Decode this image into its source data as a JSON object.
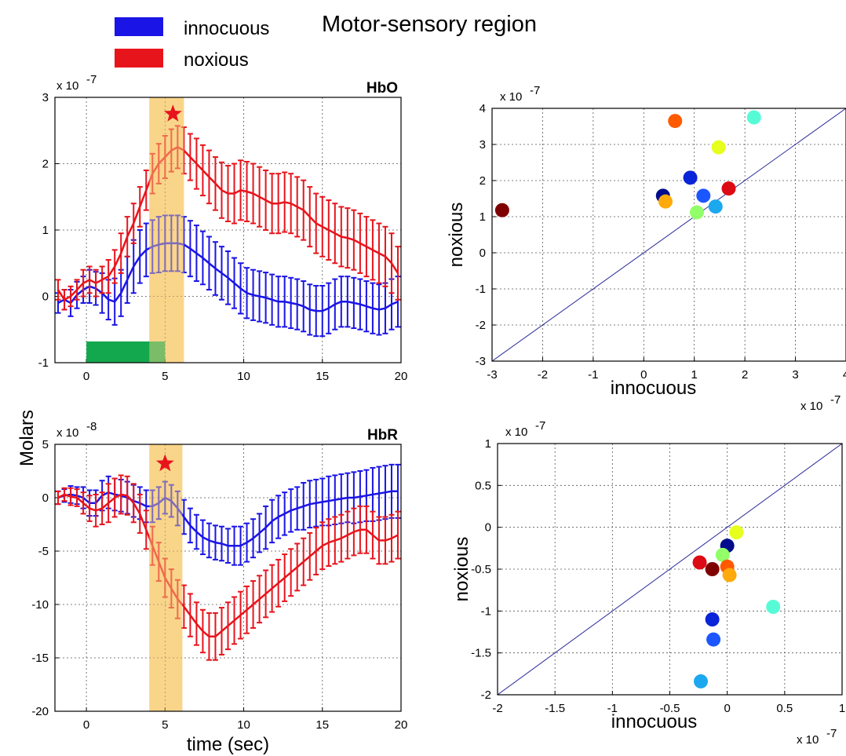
{
  "figure": {
    "title": "Motor-sensory region",
    "shared_ylabel": "Molars",
    "legend": [
      {
        "label": "innocuous",
        "color": "#1a14e6"
      },
      {
        "label": "noxious",
        "color": "#e8141c"
      }
    ],
    "colors": {
      "highlight": "#f9d58a",
      "stimulus_bar": "#14a84e",
      "star": "#e8141c",
      "identity_line": "#2a2a9a"
    }
  },
  "chart_data": [
    {
      "id": "hbo",
      "type": "line",
      "title": "HbO",
      "xlabel": "",
      "ylabel": "",
      "y_scale_label": "x 10",
      "y_scale_exp": "-7",
      "xlim": [
        -2,
        20
      ],
      "ylim": [
        -1,
        3
      ],
      "xticks": [
        "0",
        "5",
        "10",
        "15",
        "20"
      ],
      "yticks": [
        "-1",
        "0",
        "1",
        "2",
        "3"
      ],
      "highlight_window": [
        4,
        6.2
      ],
      "stimulus_bar": {
        "x": [
          0,
          5
        ],
        "y": [
          -1,
          -0.68
        ]
      },
      "significance_star": {
        "x": 5.5,
        "y": 2.75
      },
      "series": [
        {
          "name": "innocuous",
          "color": "#1a14e6",
          "x": [
            -1.8,
            -1.4,
            -1,
            -0.6,
            -0.2,
            0.2,
            0.6,
            1,
            1.4,
            1.8,
            2.2,
            2.6,
            3,
            3.4,
            3.8,
            4.2,
            4.6,
            5,
            5.4,
            5.8,
            6.2,
            6.6,
            7,
            7.4,
            7.8,
            8.2,
            8.6,
            9,
            9.4,
            9.8,
            10.2,
            10.6,
            11,
            11.4,
            11.8,
            12.2,
            12.6,
            13,
            13.4,
            13.8,
            14.2,
            14.6,
            15,
            15.4,
            15.8,
            16.2,
            16.6,
            17,
            17.4,
            17.8,
            18.2,
            18.6,
            19,
            19.4,
            19.8
          ],
          "y": [
            -0.1,
            -0.05,
            -0.1,
            0.02,
            0.1,
            0.15,
            0.12,
            0.05,
            -0.05,
            -0.08,
            0.05,
            0.25,
            0.45,
            0.6,
            0.7,
            0.75,
            0.78,
            0.8,
            0.8,
            0.8,
            0.78,
            0.72,
            0.65,
            0.58,
            0.5,
            0.42,
            0.35,
            0.28,
            0.2,
            0.12,
            0.05,
            0.02,
            0.0,
            -0.02,
            -0.05,
            -0.08,
            -0.08,
            -0.1,
            -0.12,
            -0.15,
            -0.2,
            -0.22,
            -0.22,
            -0.18,
            -0.12,
            -0.08,
            -0.08,
            -0.1,
            -0.12,
            -0.15,
            -0.18,
            -0.2,
            -0.18,
            -0.12,
            -0.08
          ],
          "err": [
            0.15,
            0.15,
            0.2,
            0.2,
            0.2,
            0.25,
            0.25,
            0.3,
            0.3,
            0.35,
            0.35,
            0.35,
            0.4,
            0.4,
            0.4,
            0.4,
            0.42,
            0.42,
            0.42,
            0.42,
            0.42,
            0.42,
            0.42,
            0.4,
            0.4,
            0.4,
            0.4,
            0.4,
            0.38,
            0.38,
            0.38,
            0.38,
            0.38,
            0.38,
            0.38,
            0.38,
            0.38,
            0.38,
            0.38,
            0.38,
            0.38,
            0.38,
            0.38,
            0.38,
            0.38,
            0.38,
            0.38,
            0.38,
            0.38,
            0.38,
            0.38,
            0.38,
            0.38,
            0.38,
            0.38
          ]
        },
        {
          "name": "noxious",
          "color": "#e8141c",
          "x": [
            -1.8,
            -1.4,
            -1,
            -0.6,
            -0.2,
            0.2,
            0.6,
            1,
            1.4,
            1.8,
            2.2,
            2.6,
            3,
            3.4,
            3.8,
            4.2,
            4.6,
            5,
            5.4,
            5.8,
            6.2,
            6.6,
            7,
            7.4,
            7.8,
            8.2,
            8.6,
            9,
            9.4,
            9.8,
            10.2,
            10.6,
            11,
            11.4,
            11.8,
            12.2,
            12.6,
            13,
            13.4,
            13.8,
            14.2,
            14.6,
            15,
            15.4,
            15.8,
            16.2,
            16.6,
            17,
            17.4,
            17.8,
            18.2,
            18.6,
            19,
            19.4,
            19.8
          ],
          "y": [
            0.1,
            -0.05,
            0.0,
            0.1,
            0.2,
            0.25,
            0.2,
            0.25,
            0.3,
            0.45,
            0.65,
            0.9,
            1.1,
            1.35,
            1.6,
            1.85,
            2.0,
            2.1,
            2.2,
            2.25,
            2.2,
            2.1,
            2.0,
            1.9,
            1.8,
            1.7,
            1.6,
            1.55,
            1.55,
            1.6,
            1.58,
            1.55,
            1.5,
            1.45,
            1.4,
            1.4,
            1.42,
            1.4,
            1.35,
            1.3,
            1.2,
            1.1,
            1.05,
            1.0,
            0.95,
            0.9,
            0.88,
            0.85,
            0.8,
            0.75,
            0.7,
            0.65,
            0.6,
            0.5,
            0.35
          ],
          "err": [
            0.15,
            0.15,
            0.15,
            0.15,
            0.2,
            0.2,
            0.2,
            0.2,
            0.25,
            0.25,
            0.3,
            0.3,
            0.3,
            0.3,
            0.3,
            0.3,
            0.3,
            0.32,
            0.32,
            0.32,
            0.35,
            0.35,
            0.38,
            0.38,
            0.4,
            0.4,
            0.42,
            0.42,
            0.45,
            0.45,
            0.45,
            0.45,
            0.45,
            0.45,
            0.45,
            0.45,
            0.45,
            0.45,
            0.45,
            0.45,
            0.45,
            0.45,
            0.45,
            0.45,
            0.45,
            0.45,
            0.45,
            0.45,
            0.45,
            0.45,
            0.45,
            0.45,
            0.45,
            0.45,
            0.4
          ]
        }
      ]
    },
    {
      "id": "hbr",
      "type": "line",
      "title": "HbR",
      "xlabel": "time (sec)",
      "ylabel": "",
      "y_scale_label": "x 10",
      "y_scale_exp": "-8",
      "xlim": [
        -2,
        20
      ],
      "ylim": [
        -20,
        5
      ],
      "xticks": [
        "0",
        "5",
        "10",
        "15",
        "20"
      ],
      "yticks": [
        "-20",
        "-15",
        "-10",
        "-5",
        "0",
        "5"
      ],
      "highlight_window": [
        4,
        6.1
      ],
      "significance_star": {
        "x": 5,
        "y": 3.2
      },
      "series": [
        {
          "name": "innocuous",
          "color": "#1a14e6",
          "x": [
            -1.8,
            -1.4,
            -1,
            -0.6,
            -0.2,
            0.2,
            0.6,
            1,
            1.4,
            1.8,
            2.2,
            2.6,
            3,
            3.4,
            3.8,
            4.2,
            4.6,
            5,
            5.4,
            5.8,
            6.2,
            6.6,
            7,
            7.4,
            7.8,
            8.2,
            8.6,
            9,
            9.4,
            9.8,
            10.2,
            10.6,
            11,
            11.4,
            11.8,
            12.2,
            12.6,
            13,
            13.4,
            13.8,
            14.2,
            14.6,
            15,
            15.4,
            15.8,
            16.2,
            16.6,
            17,
            17.4,
            17.8,
            18.2,
            18.6,
            19,
            19.4,
            19.8
          ],
          "y": [
            0,
            0.2,
            0.3,
            0.2,
            0,
            -0.5,
            -0.5,
            0.2,
            0.5,
            0.3,
            0.2,
            0.0,
            -0.3,
            -0.5,
            -0.8,
            -0.8,
            -0.5,
            0.0,
            -0.3,
            -1.0,
            -1.8,
            -2.6,
            -3.2,
            -3.7,
            -4.0,
            -4.2,
            -4.3,
            -4.5,
            -4.5,
            -4.5,
            -4.2,
            -3.8,
            -3.3,
            -2.8,
            -2.2,
            -1.8,
            -1.5,
            -1.2,
            -1.0,
            -0.8,
            -0.6,
            -0.5,
            -0.4,
            -0.3,
            -0.2,
            -0.1,
            0.0,
            0.0,
            0.1,
            0.2,
            0.3,
            0.4,
            0.5,
            0.6,
            0.6
          ],
          "err": [
            0.6,
            0.6,
            0.8,
            0.8,
            1.0,
            1.2,
            1.2,
            1.4,
            1.5,
            1.5,
            1.5,
            1.5,
            1.5,
            1.5,
            1.5,
            1.5,
            1.5,
            1.5,
            1.5,
            1.6,
            1.6,
            1.6,
            1.6,
            1.6,
            1.6,
            1.6,
            1.6,
            1.6,
            1.8,
            1.8,
            1.8,
            1.8,
            1.8,
            2.0,
            2.0,
            2.0,
            2.0,
            2.0,
            2.0,
            2.2,
            2.2,
            2.2,
            2.2,
            2.3,
            2.3,
            2.3,
            2.3,
            2.4,
            2.4,
            2.4,
            2.5,
            2.5,
            2.5,
            2.5,
            2.5
          ]
        },
        {
          "name": "noxious",
          "color": "#e8141c",
          "x": [
            -1.8,
            -1.4,
            -1,
            -0.6,
            -0.2,
            0.2,
            0.6,
            1,
            1.4,
            1.8,
            2.2,
            2.6,
            3,
            3.4,
            3.8,
            4.2,
            4.6,
            5,
            5.4,
            5.8,
            6.2,
            6.6,
            7,
            7.4,
            7.8,
            8.2,
            8.6,
            9,
            9.4,
            9.8,
            10.2,
            10.6,
            11,
            11.4,
            11.8,
            12.2,
            12.6,
            13,
            13.4,
            13.8,
            14.2,
            14.6,
            15,
            15.4,
            15.8,
            16.2,
            16.6,
            17,
            17.4,
            17.8,
            18.2,
            18.6,
            19,
            19.4,
            19.8
          ],
          "y": [
            0,
            0.3,
            0.1,
            0,
            -0.5,
            -1.0,
            -1.2,
            -1.0,
            -0.5,
            0,
            0.3,
            0.2,
            -0.5,
            -1.5,
            -3.0,
            -4.5,
            -6.0,
            -7.5,
            -8.5,
            -9.5,
            -10.2,
            -11.0,
            -11.8,
            -12.5,
            -13.0,
            -13.0,
            -12.5,
            -12.0,
            -11.5,
            -11.0,
            -10.5,
            -10.0,
            -9.5,
            -9.0,
            -8.5,
            -8.0,
            -7.5,
            -7.0,
            -6.5,
            -6.0,
            -5.5,
            -5.0,
            -4.5,
            -4.2,
            -4.0,
            -3.8,
            -3.5,
            -3.2,
            -3.0,
            -3.0,
            -3.5,
            -4.0,
            -4.0,
            -3.8,
            -3.5
          ],
          "err": [
            0.6,
            0.6,
            0.8,
            0.8,
            1.0,
            1.2,
            1.5,
            1.5,
            1.8,
            1.8,
            1.8,
            1.8,
            1.8,
            1.8,
            1.8,
            1.8,
            1.8,
            1.8,
            1.8,
            1.8,
            2.0,
            2.0,
            2.0,
            2.0,
            2.2,
            2.2,
            2.2,
            2.2,
            2.2,
            2.2,
            2.2,
            2.2,
            2.2,
            2.2,
            2.2,
            2.2,
            2.2,
            2.2,
            2.2,
            2.2,
            2.2,
            2.2,
            2.2,
            2.2,
            2.2,
            2.2,
            2.2,
            2.2,
            2.2,
            2.2,
            2.2,
            2.2,
            2.2,
            2.2,
            2.2
          ]
        }
      ]
    },
    {
      "id": "scatter_hbo",
      "type": "scatter",
      "title": "",
      "xlabel": "innocuous",
      "ylabel": "noxious",
      "x_scale_label": "x 10",
      "x_scale_exp": "-7",
      "y_scale_label": "x 10",
      "y_scale_exp": "-7",
      "xlim": [
        -3,
        4
      ],
      "ylim": [
        -3,
        4
      ],
      "xticks": [
        "-3",
        "-2",
        "-1",
        "0",
        "1",
        "2",
        "3",
        "4"
      ],
      "yticks": [
        "-3",
        "-2",
        "-1",
        "0",
        "1",
        "2",
        "3",
        "4"
      ],
      "identity_line": true,
      "points": [
        {
          "x": -2.8,
          "y": 1.18,
          "color": "#7f0000"
        },
        {
          "x": 0.62,
          "y": 3.65,
          "color": "#ff5a00"
        },
        {
          "x": 2.18,
          "y": 3.75,
          "color": "#56fbd6"
        },
        {
          "x": 1.48,
          "y": 2.92,
          "color": "#e6ff1c"
        },
        {
          "x": 0.92,
          "y": 2.08,
          "color": "#0a24d8"
        },
        {
          "x": 0.38,
          "y": 1.58,
          "color": "#000c8c"
        },
        {
          "x": 0.43,
          "y": 1.42,
          "color": "#ffaa0a"
        },
        {
          "x": 1.18,
          "y": 1.58,
          "color": "#1c56ff"
        },
        {
          "x": 1.68,
          "y": 1.78,
          "color": "#dc0a14"
        },
        {
          "x": 1.42,
          "y": 1.28,
          "color": "#1ca8ee"
        },
        {
          "x": 1.05,
          "y": 1.12,
          "color": "#92ff6a"
        }
      ]
    },
    {
      "id": "scatter_hbr",
      "type": "scatter",
      "title": "",
      "xlabel": "innocuous",
      "ylabel": "noxious",
      "x_scale_label": "x 10",
      "x_scale_exp": "-7",
      "y_scale_label": "x 10",
      "y_scale_exp": "-7",
      "xlim": [
        -2,
        1
      ],
      "ylim": [
        -2,
        1
      ],
      "xticks": [
        "-2",
        "-1.5",
        "-1",
        "-0.5",
        "0",
        "0.5",
        "1"
      ],
      "yticks": [
        "-2",
        "-1.5",
        "-1",
        "-0.5",
        "0",
        "0.5",
        "1"
      ],
      "identity_line": true,
      "points": [
        {
          "x": 0.08,
          "y": -0.06,
          "color": "#e6ff1c"
        },
        {
          "x": -0.0,
          "y": -0.22,
          "color": "#000c8c"
        },
        {
          "x": -0.04,
          "y": -0.33,
          "color": "#92ff6a"
        },
        {
          "x": -0.24,
          "y": -0.42,
          "color": "#dc0a14"
        },
        {
          "x": -0.13,
          "y": -0.5,
          "color": "#7f0000"
        },
        {
          "x": 0.0,
          "y": -0.47,
          "color": "#ff5a00"
        },
        {
          "x": 0.02,
          "y": -0.57,
          "color": "#ffaa0a"
        },
        {
          "x": 0.4,
          "y": -0.95,
          "color": "#56fbd6"
        },
        {
          "x": -0.13,
          "y": -1.1,
          "color": "#0a24d8"
        },
        {
          "x": -0.12,
          "y": -1.34,
          "color": "#1c56ff"
        },
        {
          "x": -0.23,
          "y": -1.84,
          "color": "#1ca8ee"
        }
      ]
    }
  ]
}
